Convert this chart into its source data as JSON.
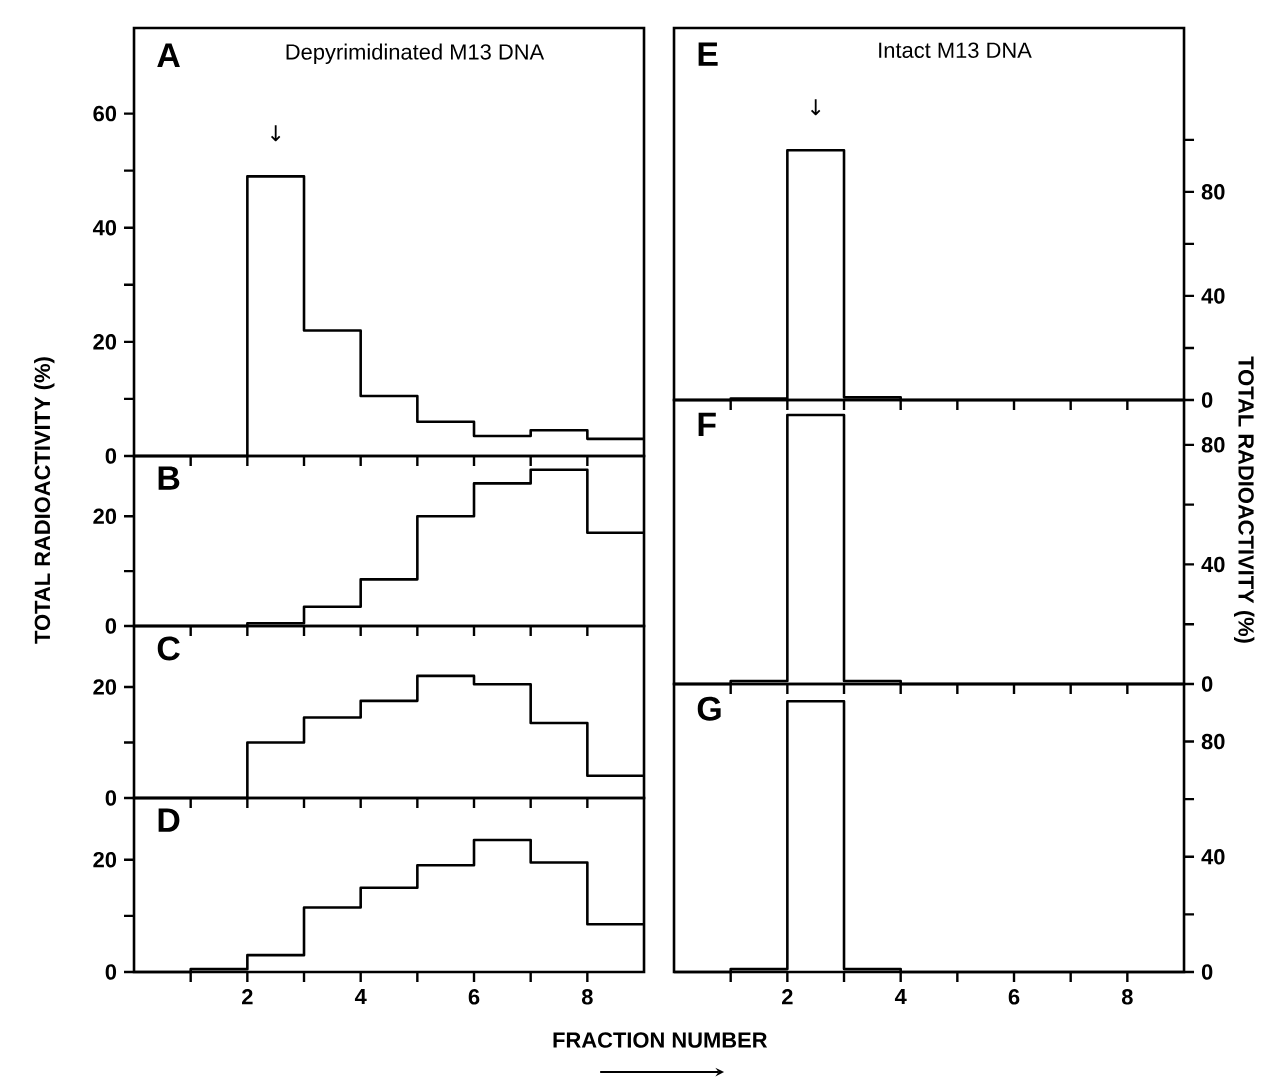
{
  "chart_data": [
    {
      "type": "histogram",
      "title": "A",
      "subtitle": "Depyrimidinated M13 DNA",
      "ylabel": "TOTAL RADIOACTIVITY (%)",
      "bins": [
        0,
        1,
        2,
        3,
        4,
        5,
        6,
        7,
        8,
        9
      ],
      "values": [
        0,
        0,
        49,
        22,
        10.5,
        6,
        3.5,
        4.5,
        3
      ],
      "color": "#000000",
      "xlim": [
        0,
        9
      ],
      "xticks": [
        {
          "value": 1,
          "label": null
        },
        2,
        {
          "value": 3,
          "label": null
        },
        4,
        {
          "value": 5,
          "label": null
        },
        6,
        {
          "value": 7,
          "label": null
        },
        8
      ],
      "ylim": [
        0,
        75
      ],
      "yticks": [
        0,
        {
          "value": 10,
          "label": null
        },
        20,
        {
          "value": 30,
          "label": null
        },
        40,
        {
          "value": 50,
          "label": null
        },
        60
      ],
      "tick_labels": "y",
      "annotations": [
        "↓"
      ]
    },
    {
      "type": "histogram",
      "title": "B",
      "bins": [
        0,
        1,
        2,
        3,
        4,
        5,
        6,
        7,
        8,
        9
      ],
      "values": [
        0,
        0,
        0.5,
        3.5,
        8.5,
        20,
        26,
        28.5,
        17
      ],
      "color": "#000000",
      "xlim": [
        0,
        9
      ],
      "xticks": [
        {
          "value": 1,
          "label": null
        },
        2,
        {
          "value": 3,
          "label": null
        },
        4,
        {
          "value": 5,
          "label": null
        },
        6,
        {
          "value": 7,
          "label": null
        },
        8
      ],
      "ylim": [
        0,
        31
      ],
      "yticks": [
        0,
        {
          "value": 10,
          "label": null
        },
        20
      ],
      "tick_labels": "y"
    },
    {
      "type": "histogram",
      "title": "C",
      "bins": [
        0,
        1,
        2,
        3,
        4,
        5,
        6,
        7,
        8,
        9
      ],
      "values": [
        0,
        0,
        10,
        14.5,
        17.5,
        22,
        20.5,
        13.5,
        4
      ],
      "color": "#000000",
      "xlim": [
        0,
        9
      ],
      "xticks": [
        {
          "value": 1,
          "label": null
        },
        2,
        {
          "value": 3,
          "label": null
        },
        4,
        {
          "value": 5,
          "label": null
        },
        6,
        {
          "value": 7,
          "label": null
        },
        8
      ],
      "ylim": [
        0,
        31
      ],
      "yticks": [
        0,
        {
          "value": 10,
          "label": null
        },
        20
      ],
      "tick_labels": "y"
    },
    {
      "type": "histogram",
      "title": "D",
      "xlabel": "FRACTION NUMBER",
      "bins": [
        0,
        1,
        2,
        3,
        4,
        5,
        6,
        7,
        8,
        9
      ],
      "values": [
        0,
        0.5,
        3,
        11.5,
        15,
        19,
        23.5,
        19.5,
        8.5
      ],
      "color": "#000000",
      "xlim": [
        0,
        9
      ],
      "xticks": [
        {
          "value": 1,
          "label": null
        },
        2,
        {
          "value": 3,
          "label": null
        },
        4,
        {
          "value": 5,
          "label": null
        },
        6,
        {
          "value": 7,
          "label": null
        },
        8
      ],
      "ylim": [
        0,
        31
      ],
      "yticks": [
        0,
        {
          "value": 10,
          "label": null
        },
        20
      ]
    },
    {
      "type": "histogram",
      "title": "E",
      "subtitle": "Intact M13 DNA",
      "ylabel": "TOTAL RADIOACTIVITY (%)",
      "bins": [
        0,
        1,
        2,
        3,
        4,
        5,
        6,
        7,
        8,
        9
      ],
      "values": [
        0,
        0.5,
        96,
        1,
        0,
        0,
        0,
        0,
        0
      ],
      "color": "#000000",
      "xlim": [
        0,
        9
      ],
      "xticks": [
        {
          "value": 1,
          "label": null
        },
        2,
        {
          "value": 3,
          "label": null
        },
        4,
        {
          "value": 5,
          "label": null
        },
        6,
        {
          "value": 7,
          "label": null
        },
        8
      ],
      "ylim": [
        0,
        143
      ],
      "yticks": [
        0,
        {
          "value": 20,
          "label": null
        },
        40,
        {
          "value": 60,
          "label": null
        },
        80,
        {
          "value": 100,
          "label": null
        }
      ],
      "tick_labels": "y",
      "annotations": [
        "↓"
      ]
    },
    {
      "type": "histogram",
      "title": "F",
      "bins": [
        0,
        1,
        2,
        3,
        4,
        5,
        6,
        7,
        8,
        9
      ],
      "values": [
        0,
        1,
        90,
        1,
        0,
        0,
        0,
        0,
        0
      ],
      "color": "#000000",
      "xlim": [
        0,
        9
      ],
      "xticks": [
        {
          "value": 1,
          "label": null
        },
        2,
        {
          "value": 3,
          "label": null
        },
        4,
        {
          "value": 5,
          "label": null
        },
        6,
        {
          "value": 7,
          "label": null
        },
        8
      ],
      "ylim": [
        0,
        95
      ],
      "yticks": [
        0,
        {
          "value": 20,
          "label": null
        },
        40,
        {
          "value": 60,
          "label": null
        },
        80
      ],
      "tick_labels": "y"
    },
    {
      "type": "histogram",
      "title": "G",
      "bins": [
        0,
        1,
        2,
        3,
        4,
        5,
        6,
        7,
        8,
        9
      ],
      "values": [
        0,
        1,
        94,
        1,
        0,
        0,
        0,
        0,
        0
      ],
      "color": "#000000",
      "xlim": [
        0,
        9
      ],
      "xticks": [
        {
          "value": 1,
          "label": null
        },
        2,
        {
          "value": 3,
          "label": null
        },
        4,
        {
          "value": 5,
          "label": null
        },
        6,
        {
          "value": 7,
          "label": null
        },
        8
      ],
      "ylim": [
        0,
        100
      ],
      "yticks": [
        0,
        {
          "value": 20,
          "label": null
        },
        40,
        {
          "value": 60,
          "label": null
        },
        80
      ]
    }
  ]
}
